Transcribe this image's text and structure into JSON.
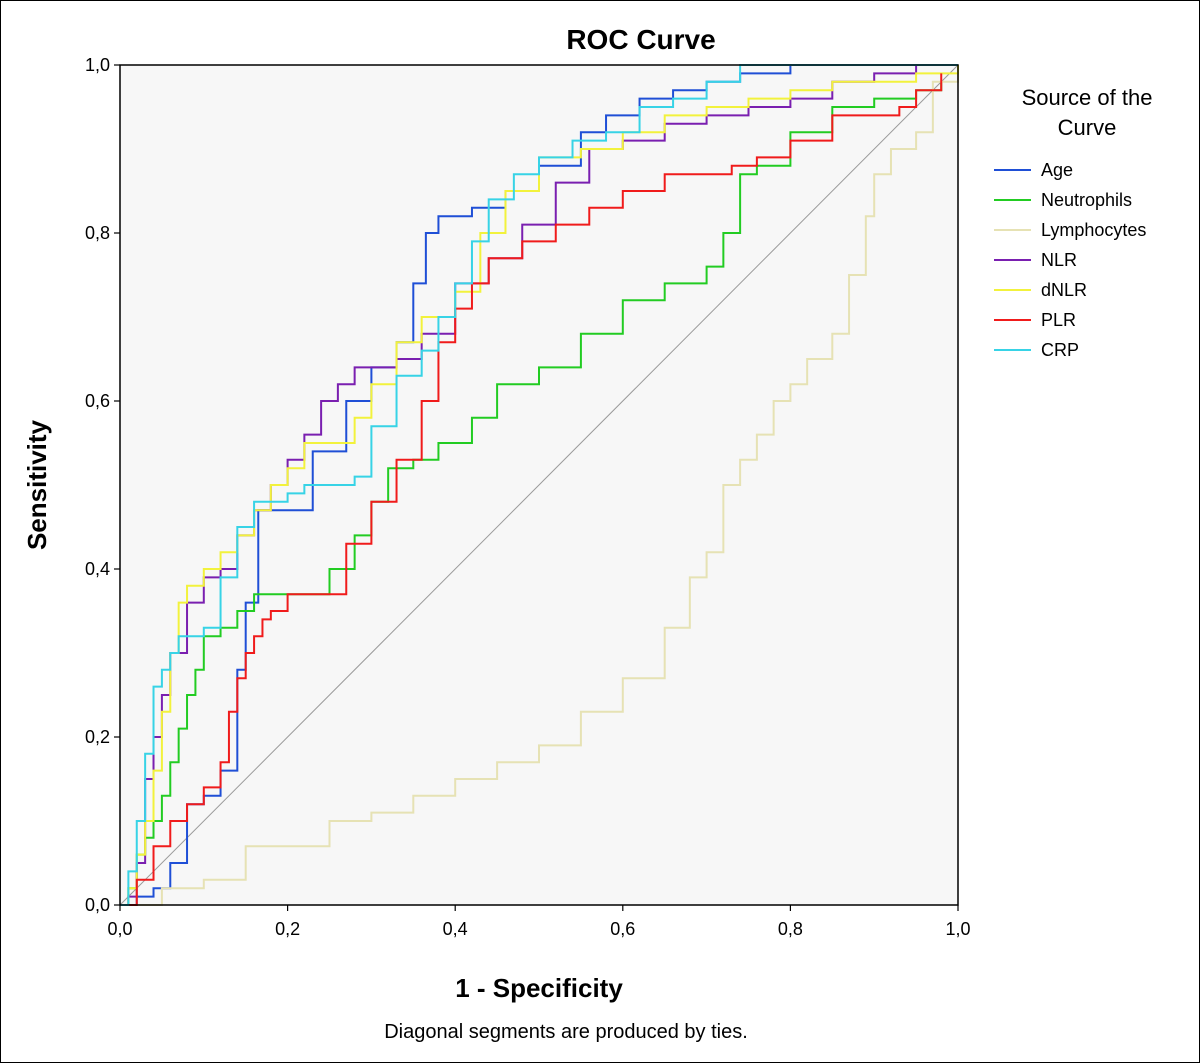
{
  "chart_data": {
    "type": "line",
    "title": "ROC Curve",
    "xlabel": "1 - Specificity",
    "ylabel": "Sensitivity",
    "xlim": [
      0,
      1
    ],
    "ylim": [
      0,
      1
    ],
    "xticks": [
      "0,0",
      "0,2",
      "0,4",
      "0,6",
      "0,8",
      "1,0"
    ],
    "yticks": [
      "0,0",
      "0,2",
      "0,4",
      "0,6",
      "0,8",
      "1,0"
    ],
    "grid": false,
    "legend": {
      "title_lines": [
        "Source of the",
        "Curve"
      ],
      "placement": "right"
    },
    "footnote": "Diagonal segments are produced by ties.",
    "series": [
      {
        "name": "Age",
        "color": "#1f4fd6",
        "x": [
          0,
          0.02,
          0.04,
          0.06,
          0.08,
          0.1,
          0.12,
          0.14,
          0.15,
          0.165,
          0.18,
          0.2,
          0.23,
          0.27,
          0.3,
          0.33,
          0.35,
          0.365,
          0.38,
          0.4,
          0.42,
          0.46,
          0.5,
          0.55,
          0.58,
          0.62,
          0.66,
          0.7,
          0.74,
          0.78,
          0.8,
          0.84,
          0.9,
          1
        ],
        "y": [
          0,
          0.01,
          0.02,
          0.05,
          0.12,
          0.13,
          0.16,
          0.28,
          0.36,
          0.47,
          0.47,
          0.47,
          0.54,
          0.6,
          0.64,
          0.67,
          0.74,
          0.8,
          0.82,
          0.82,
          0.83,
          0.85,
          0.88,
          0.92,
          0.94,
          0.96,
          0.97,
          0.98,
          0.99,
          0.99,
          1,
          1,
          1,
          1
        ]
      },
      {
        "name": "Neutrophils",
        "color": "#22cc22",
        "x": [
          0,
          0.01,
          0.02,
          0.03,
          0.04,
          0.05,
          0.06,
          0.07,
          0.08,
          0.09,
          0.1,
          0.12,
          0.14,
          0.16,
          0.18,
          0.2,
          0.22,
          0.25,
          0.28,
          0.3,
          0.32,
          0.35,
          0.38,
          0.42,
          0.45,
          0.5,
          0.55,
          0.6,
          0.65,
          0.7,
          0.72,
          0.74,
          0.76,
          0.8,
          0.85,
          0.9,
          0.95,
          0.98
        ],
        "y": [
          0,
          0.02,
          0.06,
          0.08,
          0.1,
          0.13,
          0.17,
          0.21,
          0.25,
          0.28,
          0.32,
          0.33,
          0.35,
          0.37,
          0.37,
          0.37,
          0.37,
          0.4,
          0.44,
          0.48,
          0.52,
          0.53,
          0.55,
          0.58,
          0.62,
          0.64,
          0.68,
          0.72,
          0.74,
          0.76,
          0.8,
          0.87,
          0.88,
          0.92,
          0.95,
          0.96,
          0.97,
          0.98
        ]
      },
      {
        "name": "Lymphocytes",
        "color": "#e6e2b4",
        "x": [
          0,
          0.05,
          0.1,
          0.15,
          0.2,
          0.23,
          0.25,
          0.3,
          0.35,
          0.4,
          0.45,
          0.5,
          0.55,
          0.6,
          0.65,
          0.68,
          0.7,
          0.72,
          0.74,
          0.76,
          0.78,
          0.8,
          0.82,
          0.85,
          0.87,
          0.89,
          0.9,
          0.92,
          0.95,
          0.97,
          1
        ],
        "y": [
          0,
          0.02,
          0.03,
          0.07,
          0.07,
          0.07,
          0.1,
          0.11,
          0.13,
          0.15,
          0.17,
          0.19,
          0.23,
          0.27,
          0.33,
          0.39,
          0.42,
          0.5,
          0.53,
          0.56,
          0.6,
          0.62,
          0.65,
          0.68,
          0.75,
          0.82,
          0.87,
          0.9,
          0.92,
          0.98,
          1
        ]
      },
      {
        "name": "NLR",
        "color": "#7a1fb0",
        "x": [
          0,
          0.01,
          0.02,
          0.03,
          0.04,
          0.05,
          0.06,
          0.08,
          0.1,
          0.12,
          0.14,
          0.16,
          0.18,
          0.2,
          0.22,
          0.24,
          0.26,
          0.28,
          0.3,
          0.33,
          0.36,
          0.4,
          0.44,
          0.48,
          0.52,
          0.56,
          0.6,
          0.65,
          0.7,
          0.75,
          0.8,
          0.85,
          0.9,
          0.95,
          1
        ],
        "y": [
          0,
          0.01,
          0.05,
          0.15,
          0.2,
          0.25,
          0.3,
          0.36,
          0.39,
          0.4,
          0.44,
          0.47,
          0.5,
          0.53,
          0.56,
          0.6,
          0.62,
          0.64,
          0.64,
          0.65,
          0.68,
          0.74,
          0.77,
          0.81,
          0.86,
          0.9,
          0.91,
          0.93,
          0.94,
          0.95,
          0.96,
          0.98,
          0.99,
          1,
          1
        ]
      },
      {
        "name": "dNLR",
        "color": "#f2f23c",
        "x": [
          0,
          0.01,
          0.02,
          0.03,
          0.04,
          0.05,
          0.06,
          0.07,
          0.08,
          0.1,
          0.12,
          0.14,
          0.16,
          0.18,
          0.2,
          0.22,
          0.25,
          0.28,
          0.3,
          0.33,
          0.36,
          0.4,
          0.43,
          0.46,
          0.5,
          0.55,
          0.6,
          0.65,
          0.7,
          0.75,
          0.8,
          0.85,
          0.9,
          0.95,
          1
        ],
        "y": [
          0,
          0.02,
          0.06,
          0.1,
          0.16,
          0.23,
          0.3,
          0.36,
          0.38,
          0.4,
          0.42,
          0.44,
          0.47,
          0.5,
          0.52,
          0.55,
          0.55,
          0.58,
          0.62,
          0.67,
          0.7,
          0.73,
          0.8,
          0.85,
          0.89,
          0.9,
          0.92,
          0.94,
          0.95,
          0.96,
          0.97,
          0.98,
          0.98,
          0.99,
          1
        ]
      },
      {
        "name": "PLR",
        "color": "#f01b1b",
        "x": [
          0,
          0.02,
          0.04,
          0.06,
          0.08,
          0.1,
          0.12,
          0.13,
          0.14,
          0.15,
          0.16,
          0.17,
          0.18,
          0.2,
          0.22,
          0.24,
          0.27,
          0.3,
          0.33,
          0.36,
          0.38,
          0.4,
          0.42,
          0.44,
          0.48,
          0.52,
          0.56,
          0.6,
          0.65,
          0.7,
          0.73,
          0.76,
          0.8,
          0.85,
          0.9,
          0.93,
          0.95,
          0.98
        ],
        "y": [
          0,
          0.03,
          0.07,
          0.1,
          0.12,
          0.14,
          0.17,
          0.23,
          0.27,
          0.3,
          0.32,
          0.34,
          0.35,
          0.37,
          0.37,
          0.37,
          0.43,
          0.48,
          0.53,
          0.6,
          0.67,
          0.71,
          0.74,
          0.77,
          0.79,
          0.81,
          0.83,
          0.85,
          0.87,
          0.87,
          0.88,
          0.89,
          0.91,
          0.94,
          0.94,
          0.95,
          0.97,
          0.99
        ]
      },
      {
        "name": "CRP",
        "color": "#37d3e6",
        "x": [
          0,
          0.01,
          0.02,
          0.03,
          0.04,
          0.05,
          0.06,
          0.07,
          0.1,
          0.12,
          0.14,
          0.16,
          0.18,
          0.2,
          0.22,
          0.25,
          0.28,
          0.3,
          0.33,
          0.36,
          0.38,
          0.4,
          0.42,
          0.44,
          0.47,
          0.5,
          0.54,
          0.58,
          0.62,
          0.66,
          0.7,
          0.74,
          0.8,
          0.9,
          1
        ],
        "y": [
          0,
          0.04,
          0.1,
          0.18,
          0.26,
          0.28,
          0.3,
          0.32,
          0.33,
          0.39,
          0.45,
          0.48,
          0.48,
          0.49,
          0.5,
          0.5,
          0.51,
          0.57,
          0.63,
          0.66,
          0.7,
          0.74,
          0.79,
          0.84,
          0.87,
          0.89,
          0.91,
          0.92,
          0.95,
          0.96,
          0.98,
          1,
          1,
          1,
          1
        ]
      },
      {
        "name": "",
        "color": "#9a9a9a",
        "x": [
          0,
          1
        ],
        "y": [
          0,
          1
        ]
      }
    ]
  }
}
